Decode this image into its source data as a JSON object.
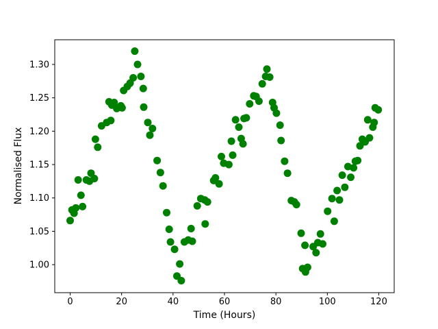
{
  "figure": {
    "background": "#ffffff"
  },
  "chart_data": {
    "type": "scatter",
    "title": "",
    "xlabel": "Time (Hours)",
    "ylabel": "Normalised Flux",
    "marker_color": "#008000",
    "marker_shape": "filled-circle",
    "grid": false,
    "legend": null,
    "xlim": [
      -6,
      126
    ],
    "ylim": [
      0.958,
      1.337
    ],
    "x_ticks": [
      "0",
      "20",
      "40",
      "60",
      "80",
      "100",
      "120"
    ],
    "y_ticks": [
      "1.00",
      "1.05",
      "1.10",
      "1.15",
      "1.20",
      "1.25",
      "1.30"
    ],
    "points": [
      [
        0.0,
        1.066
      ],
      [
        0.7,
        1.082
      ],
      [
        1.5,
        1.077
      ],
      [
        2.2,
        1.085
      ],
      [
        3.1,
        1.127
      ],
      [
        4.2,
        1.104
      ],
      [
        4.8,
        1.087
      ],
      [
        6.3,
        1.127
      ],
      [
        7.5,
        1.125
      ],
      [
        8.1,
        1.137
      ],
      [
        9.4,
        1.129
      ],
      [
        9.8,
        1.188
      ],
      [
        10.7,
        1.176
      ],
      [
        12.2,
        1.208
      ],
      [
        14.2,
        1.213
      ],
      [
        15.1,
        1.244
      ],
      [
        15.8,
        1.216
      ],
      [
        16.2,
        1.239
      ],
      [
        17.1,
        1.243
      ],
      [
        18.1,
        1.234
      ],
      [
        19.7,
        1.238
      ],
      [
        20.2,
        1.235
      ],
      [
        20.8,
        1.261
      ],
      [
        22.2,
        1.267
      ],
      [
        23.3,
        1.272
      ],
      [
        24.5,
        1.28
      ],
      [
        25.1,
        1.32
      ],
      [
        26.2,
        1.3
      ],
      [
        27.5,
        1.282
      ],
      [
        28.4,
        1.264
      ],
      [
        28.6,
        1.236
      ],
      [
        30.2,
        1.213
      ],
      [
        31.0,
        1.194
      ],
      [
        32.0,
        1.204
      ],
      [
        33.8,
        1.156
      ],
      [
        35.1,
        1.138
      ],
      [
        36.1,
        1.118
      ],
      [
        37.5,
        1.078
      ],
      [
        38.5,
        1.053
      ],
      [
        39.0,
        1.034
      ],
      [
        40.6,
        1.023
      ],
      [
        41.5,
        0.983
      ],
      [
        42.6,
        1.001
      ],
      [
        43.2,
        0.976
      ],
      [
        44.4,
        1.034
      ],
      [
        45.9,
        1.037
      ],
      [
        47.0,
        1.054
      ],
      [
        47.5,
        1.035
      ],
      [
        49.4,
        1.088
      ],
      [
        50.8,
        1.099
      ],
      [
        52.3,
        1.097
      ],
      [
        52.5,
        1.061
      ],
      [
        53.4,
        1.094
      ],
      [
        55.8,
        1.126
      ],
      [
        56.5,
        1.13
      ],
      [
        57.9,
        1.121
      ],
      [
        58.8,
        1.162
      ],
      [
        59.7,
        1.152
      ],
      [
        61.7,
        1.15
      ],
      [
        62.7,
        1.185
      ],
      [
        63.2,
        1.164
      ],
      [
        64.3,
        1.217
      ],
      [
        65.6,
        1.206
      ],
      [
        66.5,
        1.189
      ],
      [
        67.2,
        1.181
      ],
      [
        67.6,
        1.219
      ],
      [
        68.5,
        1.22
      ],
      [
        69.8,
        1.241
      ],
      [
        71.4,
        1.253
      ],
      [
        72.3,
        1.252
      ],
      [
        73.4,
        1.245
      ],
      [
        74.7,
        1.271
      ],
      [
        76.0,
        1.282
      ],
      [
        76.5,
        1.293
      ],
      [
        77.6,
        1.281
      ],
      [
        78.7,
        1.243
      ],
      [
        79.3,
        1.235
      ],
      [
        80.2,
        1.227
      ],
      [
        81.6,
        1.209
      ],
      [
        82.0,
        1.186
      ],
      [
        83.4,
        1.155
      ],
      [
        84.5,
        1.137
      ],
      [
        86.0,
        1.096
      ],
      [
        87.2,
        1.094
      ],
      [
        88.0,
        1.09
      ],
      [
        89.8,
        1.047
      ],
      [
        90.4,
        0.994
      ],
      [
        91.3,
        1.029
      ],
      [
        91.5,
        0.989
      ],
      [
        92.3,
        0.996
      ],
      [
        94.5,
        1.027
      ],
      [
        95.6,
        1.018
      ],
      [
        96.3,
        1.033
      ],
      [
        97.3,
        1.046
      ],
      [
        98.2,
        1.031
      ],
      [
        100.1,
        1.08
      ],
      [
        101.8,
        1.099
      ],
      [
        102.7,
        1.065
      ],
      [
        103.8,
        1.111
      ],
      [
        104.7,
        1.097
      ],
      [
        105.8,
        1.134
      ],
      [
        106.8,
        1.116
      ],
      [
        108.0,
        1.147
      ],
      [
        109.1,
        1.131
      ],
      [
        110.2,
        1.145
      ],
      [
        110.9,
        1.155
      ],
      [
        111.8,
        1.156
      ],
      [
        112.7,
        1.178
      ],
      [
        113.6,
        1.188
      ],
      [
        114.7,
        1.184
      ],
      [
        115.7,
        1.217
      ],
      [
        116.4,
        1.19
      ],
      [
        117.7,
        1.206
      ],
      [
        118.2,
        1.213
      ],
      [
        118.6,
        1.235
      ],
      [
        119.8,
        1.232
      ]
    ]
  }
}
